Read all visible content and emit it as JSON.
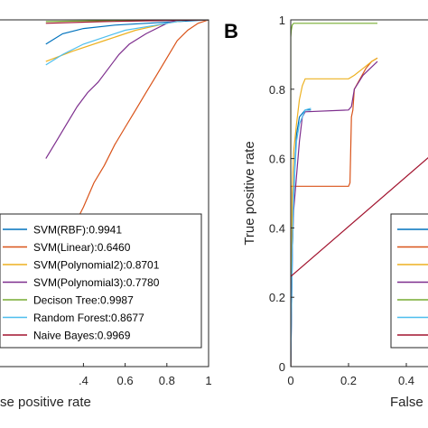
{
  "chart_data": [
    {
      "type": "line",
      "panel_label": "",
      "xlabel": "se positive rate",
      "ylabel": "",
      "xlim": [
        0,
        1
      ],
      "ylim": [
        0,
        1
      ],
      "xticks": [
        0.4,
        0.6,
        0.8,
        1
      ],
      "xtick_labels": [
        ".4",
        "0.6",
        "0.8",
        "1"
      ],
      "grid": false,
      "legend": "bottom-right",
      "series": [
        {
          "name": "SVM(RBF):0.9941",
          "color": "#0072BD",
          "points": [
            [
              0.22,
              0.93
            ],
            [
              0.3,
              0.96
            ],
            [
              0.4,
              0.975
            ],
            [
              0.55,
              0.985
            ],
            [
              0.7,
              0.99
            ],
            [
              0.85,
              0.995
            ],
            [
              1,
              1
            ]
          ]
        },
        {
          "name": "SVM(Linear):0.6460",
          "color": "#D95319",
          "points": [
            [
              0.22,
              0.27
            ],
            [
              0.3,
              0.34
            ],
            [
              0.35,
              0.4
            ],
            [
              0.4,
              0.46
            ],
            [
              0.45,
              0.53
            ],
            [
              0.5,
              0.58
            ],
            [
              0.55,
              0.64
            ],
            [
              0.6,
              0.69
            ],
            [
              0.65,
              0.74
            ],
            [
              0.7,
              0.79
            ],
            [
              0.75,
              0.84
            ],
            [
              0.8,
              0.89
            ],
            [
              0.85,
              0.94
            ],
            [
              0.9,
              0.97
            ],
            [
              0.95,
              0.99
            ],
            [
              1,
              1
            ]
          ]
        },
        {
          "name": "SVM(Polynomial2):0.8701",
          "color": "#EDB120",
          "points": [
            [
              0.22,
              0.88
            ],
            [
              0.35,
              0.91
            ],
            [
              0.5,
              0.94
            ],
            [
              0.65,
              0.97
            ],
            [
              0.8,
              0.99
            ],
            [
              0.9,
              1
            ],
            [
              1,
              1
            ]
          ]
        },
        {
          "name": "SVM(Polynomial3):0.7780",
          "color": "#7E2F8E",
          "points": [
            [
              0.22,
              0.6
            ],
            [
              0.27,
              0.65
            ],
            [
              0.32,
              0.7
            ],
            [
              0.37,
              0.75
            ],
            [
              0.42,
              0.79
            ],
            [
              0.47,
              0.82
            ],
            [
              0.52,
              0.86
            ],
            [
              0.57,
              0.9
            ],
            [
              0.62,
              0.93
            ],
            [
              0.7,
              0.96
            ],
            [
              0.8,
              0.99
            ],
            [
              0.85,
              1
            ],
            [
              1,
              1
            ]
          ]
        },
        {
          "name": "Decison Tree:0.9987",
          "color": "#77AC30",
          "points": [
            [
              0.22,
              0.995
            ],
            [
              0.5,
              0.998
            ],
            [
              1,
              1
            ]
          ]
        },
        {
          "name": "Random Forest:0.8677",
          "color": "#4DBEEE",
          "points": [
            [
              0.22,
              0.87
            ],
            [
              0.3,
              0.9
            ],
            [
              0.4,
              0.93
            ],
            [
              0.5,
              0.95
            ],
            [
              0.6,
              0.97
            ],
            [
              0.7,
              0.98
            ],
            [
              0.8,
              0.99
            ],
            [
              0.9,
              1
            ],
            [
              1,
              1
            ]
          ]
        },
        {
          "name": "Naive Bayes:0.9969",
          "color": "#A2142F",
          "points": [
            [
              0.22,
              0.99
            ],
            [
              0.5,
              0.995
            ],
            [
              1,
              1
            ]
          ]
        }
      ]
    },
    {
      "type": "line",
      "panel_label": "B",
      "xlabel": "False",
      "ylabel": "True positive rate",
      "xlim": [
        0,
        1
      ],
      "ylim": [
        0,
        1
      ],
      "yticks": [
        0,
        0.2,
        0.4,
        0.6,
        0.8,
        1
      ],
      "ytick_labels": [
        "0",
        "0.2",
        "0.4",
        "0.6",
        "0.8",
        "1"
      ],
      "xticks": [
        0,
        0.2,
        0.4
      ],
      "xtick_labels": [
        "0",
        "0.2",
        "0.4"
      ],
      "grid": false,
      "legend": "bottom-right",
      "series": [
        {
          "color": "#0072BD",
          "points": [
            [
              0,
              0
            ],
            [
              0.003,
              0.2
            ],
            [
              0.006,
              0.35
            ],
            [
              0.01,
              0.5
            ],
            [
              0.015,
              0.6
            ],
            [
              0.02,
              0.67
            ],
            [
              0.03,
              0.72
            ],
            [
              0.05,
              0.74
            ],
            [
              0.07,
              0.74
            ]
          ]
        },
        {
          "color": "#D95319",
          "points": [
            [
              0,
              0
            ],
            [
              0,
              0.52
            ],
            [
              0.2,
              0.52
            ],
            [
              0.205,
              0.53
            ],
            [
              0.21,
              0.72
            ],
            [
              0.215,
              0.74
            ],
            [
              0.22,
              0.8
            ],
            [
              0.24,
              0.83
            ],
            [
              0.26,
              0.86
            ],
            [
              0.28,
              0.88
            ],
            [
              0.3,
              0.89
            ]
          ]
        },
        {
          "color": "#EDB120",
          "points": [
            [
              0,
              0
            ],
            [
              0.005,
              0.5
            ],
            [
              0.01,
              0.62
            ],
            [
              0.02,
              0.7
            ],
            [
              0.03,
              0.77
            ],
            [
              0.04,
              0.81
            ],
            [
              0.05,
              0.83
            ],
            [
              0.2,
              0.83
            ],
            [
              0.22,
              0.84
            ],
            [
              0.25,
              0.86
            ],
            [
              0.28,
              0.88
            ],
            [
              0.3,
              0.89
            ]
          ]
        },
        {
          "color": "#7E2F8E",
          "points": [
            [
              0,
              0
            ],
            [
              0.003,
              0.2
            ],
            [
              0.006,
              0.35
            ],
            [
              0.01,
              0.45
            ],
            [
              0.02,
              0.55
            ],
            [
              0.03,
              0.65
            ],
            [
              0.04,
              0.72
            ],
            [
              0.05,
              0.735
            ],
            [
              0.2,
              0.74
            ],
            [
              0.21,
              0.75
            ],
            [
              0.22,
              0.8
            ],
            [
              0.25,
              0.84
            ],
            [
              0.3,
              0.88
            ]
          ]
        },
        {
          "color": "#77AC30",
          "points": [
            [
              0,
              0
            ],
            [
              0,
              0.95
            ],
            [
              0.002,
              0.97
            ],
            [
              0.005,
              0.985
            ],
            [
              0.01,
              0.99
            ],
            [
              0.05,
              0.99
            ],
            [
              0.3,
              0.99
            ]
          ]
        },
        {
          "color": "#4DBEEE",
          "points": [
            [
              0,
              0
            ],
            [
              0.003,
              0.2
            ],
            [
              0.006,
              0.35
            ],
            [
              0.01,
              0.48
            ],
            [
              0.015,
              0.58
            ],
            [
              0.02,
              0.65
            ],
            [
              0.03,
              0.7
            ],
            [
              0.05,
              0.74
            ],
            [
              0.07,
              0.745
            ]
          ]
        },
        {
          "color": "#A2142F",
          "points": [
            [
              0,
              0
            ],
            [
              0,
              0.26
            ],
            [
              0.5,
              0.62
            ]
          ]
        }
      ]
    }
  ]
}
